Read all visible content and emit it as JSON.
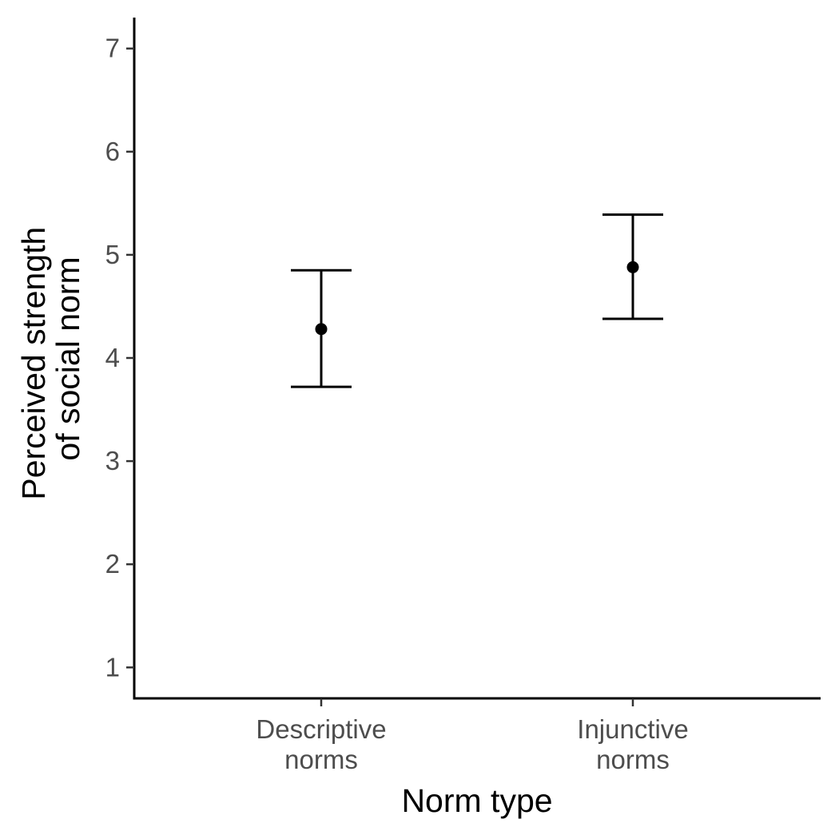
{
  "chart_data": {
    "type": "scatter",
    "title": "",
    "xlabel": "Norm type",
    "ylabel": [
      "Perceived strength",
      "of social norm"
    ],
    "categories": [
      [
        "Descriptive",
        "norms"
      ],
      [
        "Injunctive",
        "norms"
      ]
    ],
    "points": [
      {
        "mean": 4.28,
        "lower": 3.72,
        "upper": 4.85
      },
      {
        "mean": 4.88,
        "lower": 4.38,
        "upper": 5.39
      }
    ],
    "yticks": [
      "1",
      "2",
      "3",
      "4",
      "5",
      "6",
      "7"
    ],
    "ylim": [
      0.7,
      7.3
    ],
    "grid": false,
    "legend": "none"
  }
}
